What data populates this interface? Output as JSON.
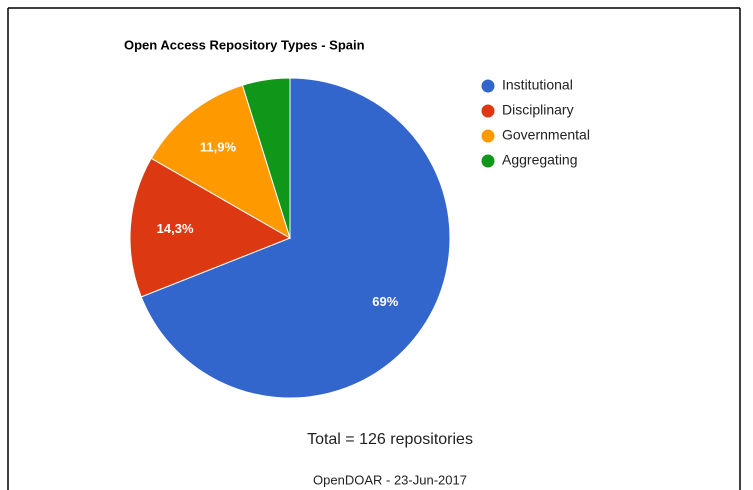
{
  "chart_data": {
    "type": "pie",
    "title": "Open Access Repository Types - Spain",
    "categories": [
      "Institutional",
      "Disciplinary",
      "Governmental",
      "Aggregating"
    ],
    "values": [
      69,
      14.3,
      11.9,
      4.8
    ],
    "value_labels": [
      "69%",
      "14,3%",
      "11,9%",
      null
    ],
    "colors": [
      "#3366cc",
      "#dc3912",
      "#ff9900",
      "#109618"
    ],
    "legend": "right",
    "annotations": [
      "Total = 126 repositories",
      "OpenDOAR - 23-Jun-2017"
    ]
  }
}
